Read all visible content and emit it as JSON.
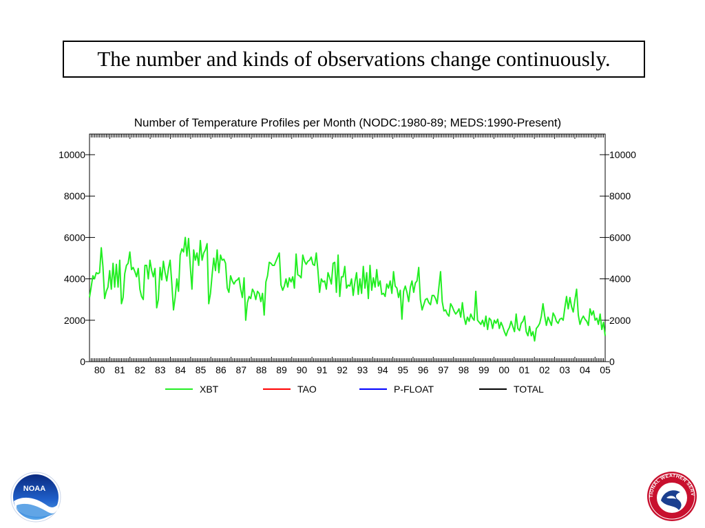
{
  "slide": {
    "title": "The number and kinds of observations change continuously."
  },
  "chart_data": {
    "type": "line",
    "title": "Number of Temperature Profiles per Month (NODC:1980-89; MEDS:1990-Present)",
    "xlabel": "",
    "ylabel": "",
    "x_tick_labels": [
      "80",
      "81",
      "82",
      "83",
      "84",
      "85",
      "86",
      "87",
      "88",
      "89",
      "90",
      "91",
      "92",
      "93",
      "94",
      "95",
      "96",
      "97",
      "98",
      "99",
      "00",
      "01",
      "02",
      "03",
      "04",
      "05"
    ],
    "x_range_years": [
      1980,
      2005.5
    ],
    "ylim": [
      0,
      10000
    ],
    "y_ticks": [
      0,
      2000,
      4000,
      6000,
      8000,
      10000
    ],
    "y_tick_labels": [
      "0",
      "2000",
      "4000",
      "6000",
      "8000",
      "10000"
    ],
    "legend_position": "bottom",
    "grid": false,
    "series": [
      {
        "name": "XBT",
        "color": "#22ee22",
        "values": [
          3100,
          3600,
          4150,
          4000,
          4300,
          4250,
          4300,
          5500,
          4600,
          3050,
          3400,
          3600,
          4400,
          3500,
          4750,
          3600,
          4700,
          3600,
          4900,
          2800,
          3100,
          4250,
          4650,
          4750,
          5300,
          4450,
          4550,
          4350,
          4100,
          4500,
          3500,
          3150,
          3000,
          4650,
          4650,
          4000,
          4900,
          4400,
          4100,
          4500,
          2600,
          3000,
          4550,
          3950,
          4850,
          4300,
          3900,
          4500,
          4900,
          3800,
          2500,
          3100,
          4000,
          3400,
          5150,
          5450,
          5300,
          6000,
          5100,
          5950,
          4600,
          3500,
          5400,
          4900,
          5250,
          4650,
          5850,
          4900,
          5250,
          5400,
          5700,
          2800,
          3300,
          4200,
          5000,
          4400,
          5400,
          4300,
          5150,
          4900,
          4950,
          4750,
          3550,
          3350,
          4150,
          3900,
          3750,
          3900,
          3950,
          4050,
          3500,
          3100,
          4050,
          2000,
          2850,
          3150,
          3050,
          3500,
          3350,
          3000,
          3400,
          3300,
          2900,
          3300,
          2250,
          3850,
          4150,
          4800,
          4750,
          4650,
          4650,
          4850,
          5050,
          5250,
          3700,
          3450,
          3650,
          4000,
          3600,
          4050,
          3850,
          4100,
          3550,
          5200,
          4200,
          4150,
          4050,
          5150,
          4850,
          4700,
          4850,
          4900,
          5050,
          4700,
          4650,
          5250,
          4400,
          3350,
          4000,
          3850,
          3900,
          3500,
          4300,
          4050,
          3750,
          4750,
          4800,
          3350,
          5150,
          3150,
          4100,
          4100,
          4600,
          3550,
          3700,
          3650,
          4000,
          3200,
          3850,
          4300,
          3250,
          4000,
          3300,
          4600,
          3550,
          4300,
          3050,
          4650,
          3450,
          4050,
          3600,
          4450,
          3650,
          3900,
          3250,
          3300,
          3150,
          3750,
          3550,
          3900,
          3300,
          4350,
          3650,
          3550,
          3100,
          3450,
          2050,
          3400,
          3650,
          3350,
          2900,
          3600,
          3900,
          3350,
          3800,
          3900,
          4550,
          3000,
          2500,
          2750,
          3000,
          3050,
          2850,
          2750,
          3200,
          3200,
          3050,
          2800,
          3600,
          4350,
          2900,
          2450,
          2500,
          2300,
          2200,
          2800,
          2650,
          2450,
          2300,
          2400,
          2550,
          2150,
          2850,
          2150,
          1800,
          2150,
          1950,
          2300,
          2100,
          2000,
          3400,
          2000,
          1900,
          1800,
          2000,
          1700,
          2200,
          1550,
          2100,
          2000,
          1600,
          2000,
          1850,
          2050,
          1600,
          1900,
          1700,
          1450,
          1250,
          1500,
          1650,
          1950,
          1700,
          1450,
          2300,
          1600,
          1500,
          1850,
          1950,
          2200,
          1450,
          1250,
          1700,
          1250,
          1450,
          1000,
          1600,
          1700,
          1850,
          2200,
          2800,
          2200,
          1750,
          2150,
          1950,
          1750,
          2350,
          2200,
          1950,
          1850,
          2050,
          2100,
          2000,
          2600,
          3150,
          2550,
          3100,
          2650,
          2400,
          3000,
          3500,
          2250,
          1800,
          2050,
          2200,
          2050,
          1950,
          1750,
          2550,
          2250,
          2450,
          2000,
          2100,
          1800,
          2300,
          1550,
          1900,
          1250
        ]
      },
      {
        "name": "TAO",
        "color": "#ff0000",
        "values": []
      },
      {
        "name": "P-FLOAT",
        "color": "#0000ff",
        "values": []
      },
      {
        "name": "TOTAL",
        "color": "#000000",
        "values": []
      }
    ]
  },
  "logos": {
    "noaa": {
      "text": "NOAA"
    },
    "nws": {
      "text": "NATIONAL WEATHER SERVICE"
    }
  }
}
